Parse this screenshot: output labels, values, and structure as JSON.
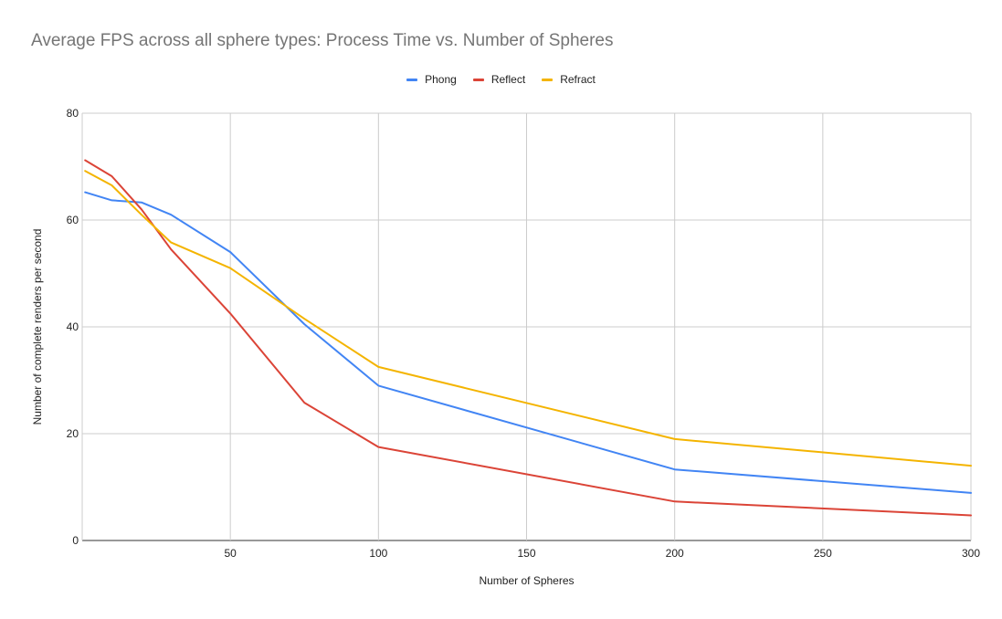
{
  "chart_data": {
    "type": "line",
    "title": "Average FPS across all sphere types: Process Time vs. Number of Spheres",
    "xlabel": "Number of Spheres",
    "ylabel": "Number of complete renders per second",
    "xlim": [
      0,
      300
    ],
    "ylim": [
      0,
      80
    ],
    "xticks": [
      50,
      100,
      150,
      200,
      250,
      300
    ],
    "yticks": [
      0,
      20,
      40,
      60,
      80
    ],
    "grid": true,
    "legend_position": "top-center",
    "series": [
      {
        "name": "Phong",
        "color": "#4285F4",
        "x": [
          1,
          10,
          20,
          30,
          50,
          75,
          100,
          200,
          300
        ],
        "y": [
          65.2,
          63.7,
          63.3,
          61.0,
          54.0,
          40.5,
          29.0,
          13.3,
          8.9
        ]
      },
      {
        "name": "Reflect",
        "color": "#DB4437",
        "x": [
          1,
          10,
          20,
          30,
          50,
          75,
          100,
          200,
          300
        ],
        "y": [
          71.2,
          68.2,
          62.0,
          54.5,
          42.5,
          25.8,
          17.5,
          7.3,
          4.7
        ]
      },
      {
        "name": "Refract",
        "color": "#F4B400",
        "x": [
          1,
          10,
          20,
          30,
          50,
          75,
          100,
          200,
          300
        ],
        "y": [
          69.2,
          66.5,
          61.0,
          55.8,
          51.0,
          41.5,
          32.5,
          19.0,
          14.0
        ]
      }
    ]
  }
}
